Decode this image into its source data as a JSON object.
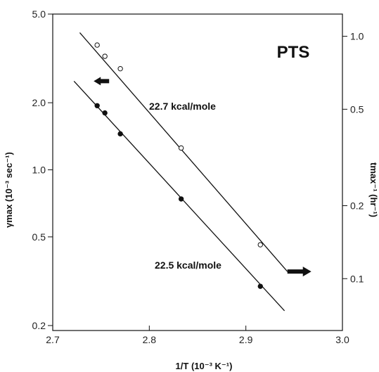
{
  "chart_data": {
    "type": "scatter",
    "title": "PTS",
    "xlabel": "1/T (10⁻³ K⁻¹)",
    "ylabel": "γmax (10⁻³ sec⁻¹)",
    "y2label": "tmax⁻¹ (hr⁻¹)",
    "xlim": [
      2.7,
      3.0
    ],
    "ylim": [
      0.19,
      5.0
    ],
    "yscale": "log",
    "y2lim": [
      0.0611,
      1.235
    ],
    "y2scale": "log",
    "x_ticks": [
      "2.7",
      "2.8",
      "2.9",
      "3.0"
    ],
    "y_ticks": [
      "0.2",
      "0.5",
      "1.0",
      "2.0",
      "5.0"
    ],
    "y2_ticks": [
      "0.1",
      "0.2",
      "0.5",
      "1.0"
    ],
    "grid": false,
    "series": [
      {
        "axis": "right",
        "marker": "open-circle",
        "fit_label": "22.7 kcal/mole",
        "x": [
          2.746,
          2.754,
          2.77,
          2.833,
          2.915
        ],
        "y": [
          0.92,
          0.827,
          0.735,
          0.346,
          0.138
        ],
        "fit_x": [
          2.728,
          2.943
        ],
        "fit_y": [
          1.035,
          0.107
        ]
      },
      {
        "axis": "left",
        "marker": "filled-circle",
        "fit_label": "22.5 kcal/mole",
        "x": [
          2.746,
          2.754,
          2.77,
          2.833,
          2.915
        ],
        "y": [
          1.94,
          1.8,
          1.45,
          0.74,
          0.3
        ],
        "fit_x": [
          2.722,
          2.94
        ],
        "fit_y": [
          2.5,
          0.233
        ]
      }
    ]
  }
}
